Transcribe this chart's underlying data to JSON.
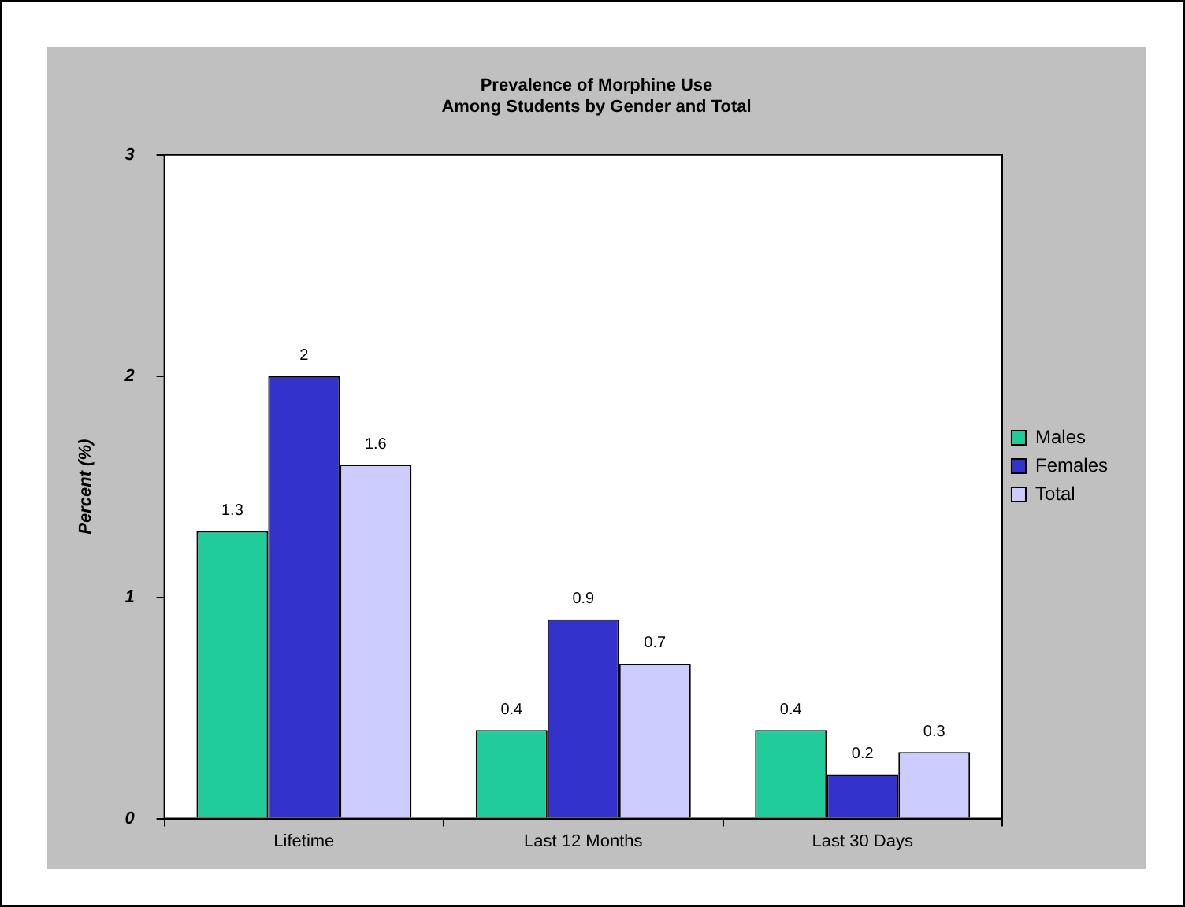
{
  "chart_data": {
    "type": "bar",
    "title": "Prevalence of Morphine Use\nAmong Students by Gender and Total",
    "ylabel": "Percent (%)",
    "categories": [
      "Lifetime",
      "Last 12 Months",
      "Last 30 Days"
    ],
    "series": [
      {
        "name": "Males",
        "color": "#1fcc9a",
        "values": [
          1.3,
          0.4,
          0.4
        ]
      },
      {
        "name": "Females",
        "color": "#3333cc",
        "values": [
          2,
          0.9,
          0.2
        ]
      },
      {
        "name": "Total",
        "color": "#ccccff",
        "values": [
          1.6,
          0.7,
          0.3
        ]
      }
    ],
    "ylim": [
      0,
      3
    ],
    "yticks": [
      0,
      1,
      2,
      3
    ],
    "legend": "right",
    "data_labels": true
  }
}
